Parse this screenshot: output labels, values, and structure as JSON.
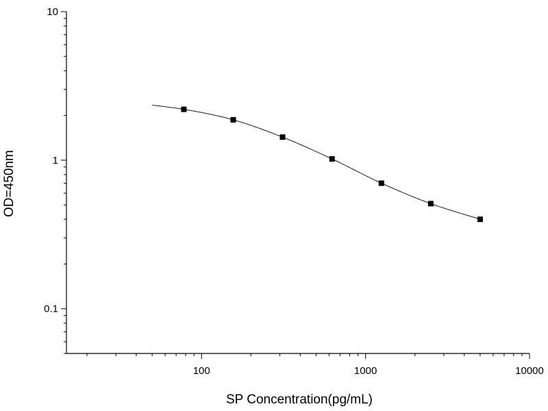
{
  "chart_data": {
    "type": "scatter",
    "title": "",
    "xlabel": "SP Concentration(pg/mL)",
    "ylabel": "OD=450nm",
    "x_scale": "log",
    "y_scale": "log",
    "xlim": [
      15,
      10000
    ],
    "ylim": [
      0.05,
      10
    ],
    "x_ticks": [
      100,
      1000,
      10000
    ],
    "x_tick_labels": [
      "100",
      "1000",
      "10000"
    ],
    "y_ticks": [
      0.1,
      1,
      10
    ],
    "y_tick_labels": [
      "0.1",
      "1",
      "10"
    ],
    "grid": false,
    "legend": "none",
    "series": [
      {
        "marker": "square",
        "color": "#000000",
        "x": [
          78,
          156,
          312,
          625,
          1250,
          2500,
          5000
        ],
        "y": [
          2.2,
          1.87,
          1.43,
          1.02,
          0.7,
          0.51,
          0.4
        ]
      }
    ],
    "fit_curve": {
      "color": "#000000",
      "x": [
        50,
        78,
        156,
        312,
        625,
        1250,
        2500,
        5000
      ],
      "y": [
        2.35,
        2.2,
        1.87,
        1.43,
        1.02,
        0.7,
        0.51,
        0.4
      ]
    }
  }
}
